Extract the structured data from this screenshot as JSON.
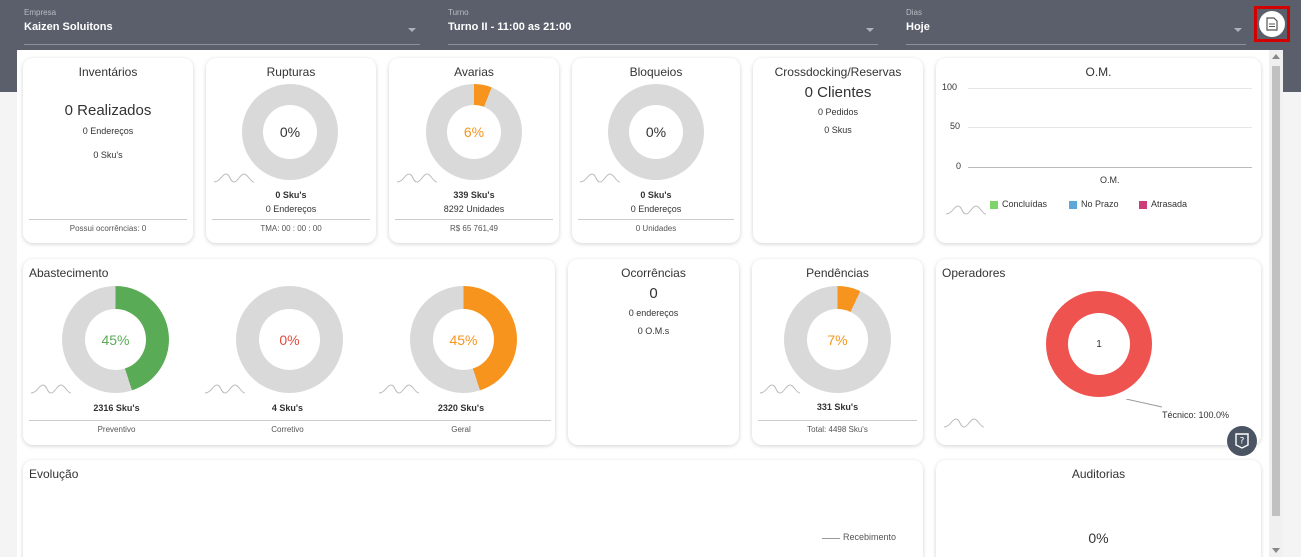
{
  "filters": {
    "empresa": {
      "label": "Empresa",
      "value": "Kaizen Soluitons"
    },
    "turno": {
      "label": "Turno",
      "value": "Turno II - 11:00 as 21:00"
    },
    "dias": {
      "label": "Dias",
      "value": "Hoje"
    }
  },
  "inventarios": {
    "title": "Inventários",
    "realizados": "0 Realizados",
    "enderecos": "0 Endereços",
    "skus": "0 Sku's",
    "footer": "Possui ocorrências:  0"
  },
  "rupturas": {
    "title": "Rupturas",
    "percent": "0%",
    "percent_value": 0,
    "skus": "0 Sku's",
    "enderecos": "0 Endereços",
    "footer": "TMA:  00 : 00 : 00"
  },
  "avarias": {
    "title": "Avarias",
    "percent": "6%",
    "percent_value": 6,
    "skus": "339 Sku's",
    "unidades": "8292 Unidades",
    "footer": "R$ 65 761,49"
  },
  "bloqueios": {
    "title": "Bloqueios",
    "percent": "0%",
    "percent_value": 0,
    "skus": "0 Sku's",
    "enderecos": "0 Endereços",
    "footer": "0 Unidades"
  },
  "crossdocking": {
    "title": "Crossdocking/Reservas",
    "clientes": "0 Clientes",
    "pedidos": "0 Pedidos",
    "skus": "0 Skus"
  },
  "om": {
    "title": "O.M.",
    "y_ticks": [
      "100",
      "50",
      "0"
    ],
    "x_label": "O.M.",
    "legend": [
      {
        "label": "Concluídas",
        "color": "#7ed66b"
      },
      {
        "label": "No Prazo",
        "color": "#5aa9d6"
      },
      {
        "label": "Atrasada",
        "color": "#cc3d7a"
      }
    ]
  },
  "abastecimento": {
    "title": "Abastecimento",
    "items": [
      {
        "percent": "45%",
        "percent_value": 45,
        "skus": "2316 Sku's",
        "label": "Preventivo",
        "color": "#5aab55"
      },
      {
        "percent": "0%",
        "percent_value": 0,
        "skus": "4 Sku's",
        "label": "Corretivo",
        "color": "#e04a3f"
      },
      {
        "percent": "45%",
        "percent_value": 45,
        "skus": "2320 Sku's",
        "label": "Geral",
        "color": "#f7941d"
      }
    ]
  },
  "ocorrencias": {
    "title": "Ocorrências",
    "total": "0",
    "enderecos": "0 endereços",
    "oms": "0 O.M.s"
  },
  "pendencias": {
    "title": "Pendências",
    "percent": "7%",
    "percent_value": 7,
    "skus": "331 Sku's",
    "footer": "Total: 4498 Sku's"
  },
  "operadores": {
    "title": "Operadores",
    "center": "1",
    "slice_label": "Técnico: 100.0%"
  },
  "evolucao": {
    "title": "Evolução",
    "legend": "Recebimento"
  },
  "auditorias": {
    "title": "Auditorias",
    "percent": "0%"
  },
  "colors": {
    "accent_orange": "#f7941d",
    "ring_gray": "#d9d9d9",
    "operadores_red": "#ef5350"
  }
}
